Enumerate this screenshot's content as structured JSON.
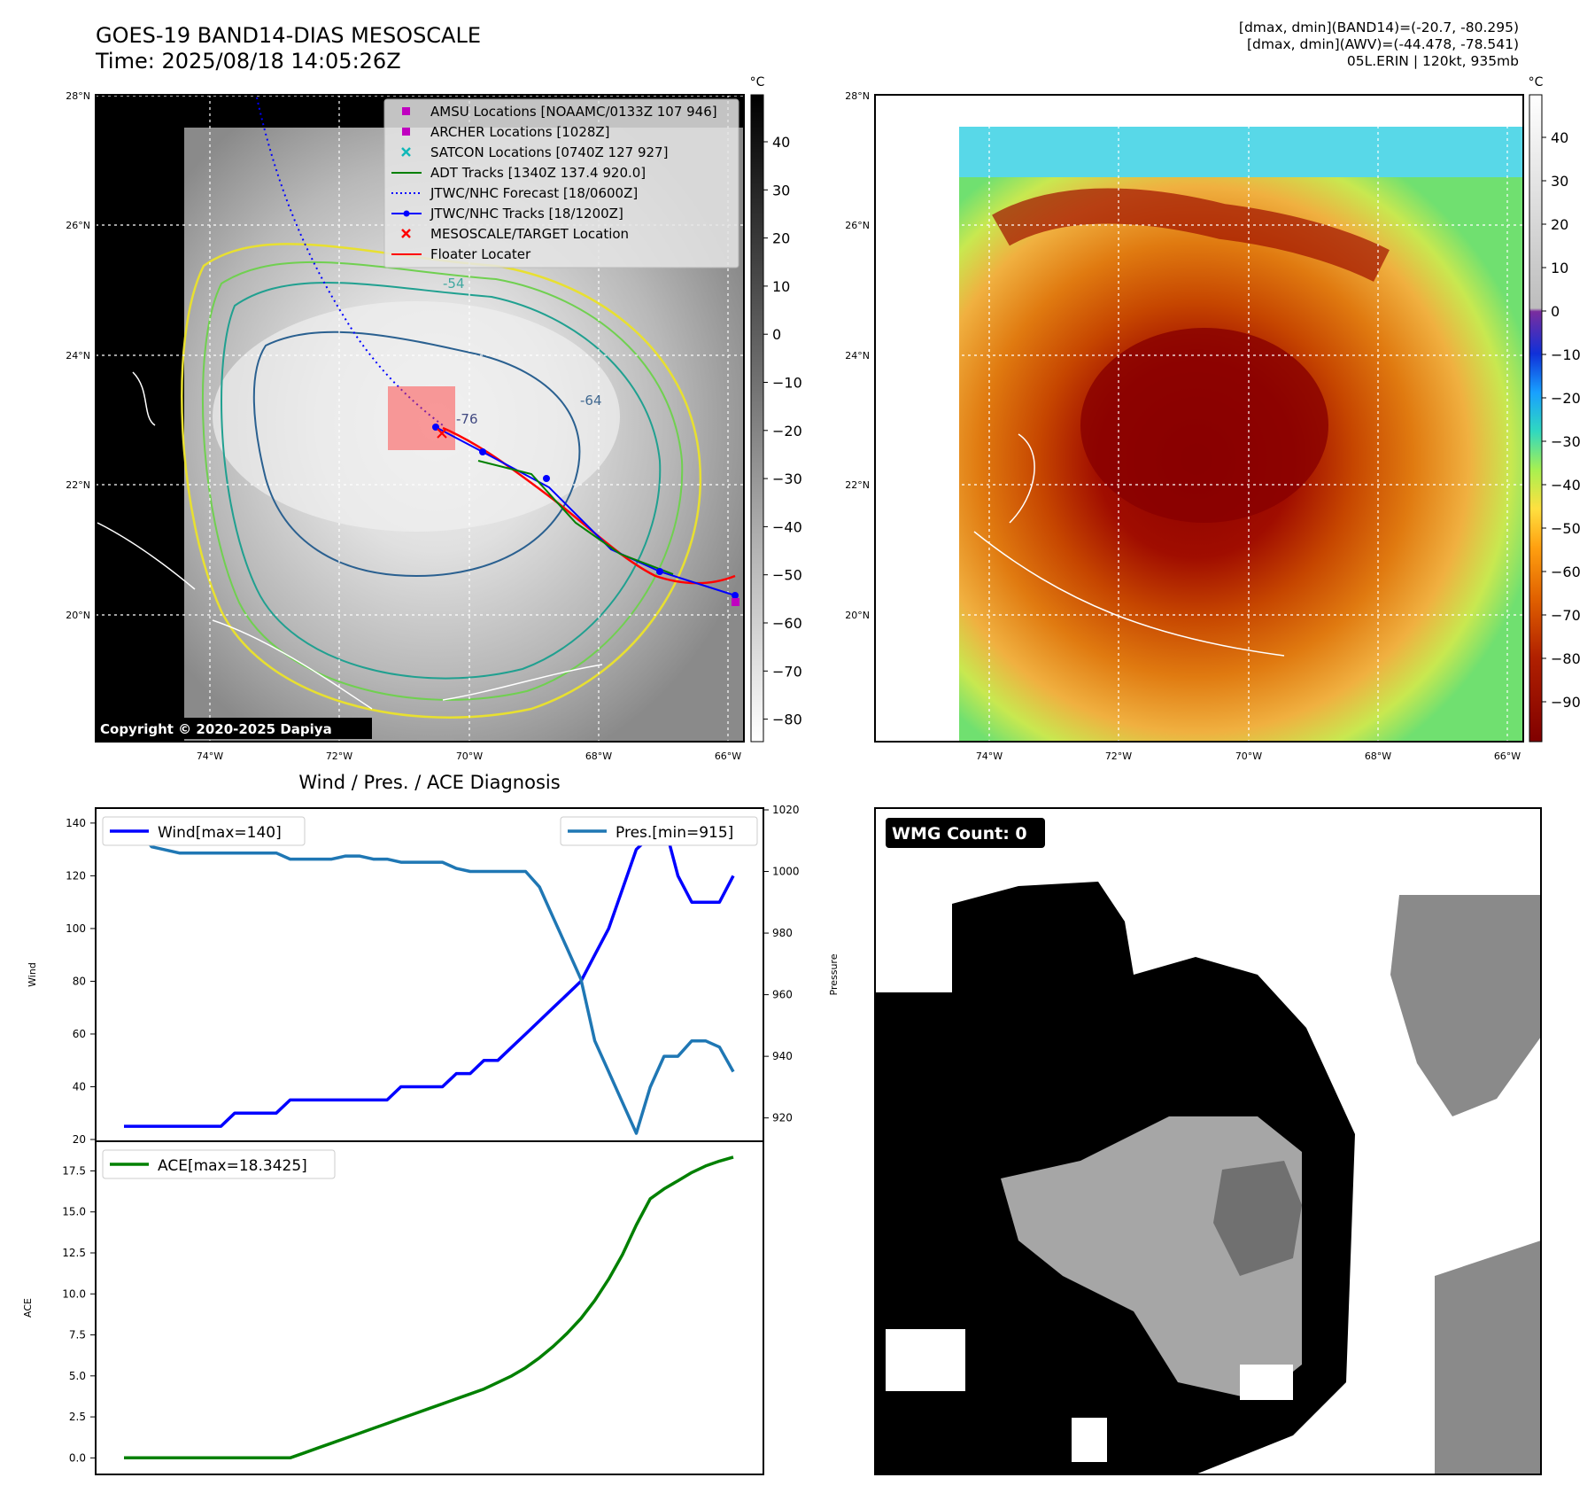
{
  "header": {
    "title_line1": "GOES-19 BAND14-DIAS MESOSCALE",
    "title_line2": "Time: 2025/08/18 14:05:26Z",
    "info_line1": "[dmax, dmin](BAND14)=(-20.7, -80.295)",
    "info_line2": "[dmax, dmin](AWV)=(-44.478, -78.541)",
    "info_line3": "05L.ERIN | 120kt, 935mb"
  },
  "map": {
    "lat_labels": [
      "28°N",
      "26°N",
      "24°N",
      "22°N",
      "20°N"
    ],
    "lon_labels": [
      "74°W",
      "72°W",
      "70°W",
      "68°W",
      "66°W"
    ],
    "contour_labels": [
      "-54",
      "-64",
      "-76"
    ],
    "copyright": "Copyright © 2020-2025 Dapiya",
    "legend": [
      {
        "label": "AMSU Locations [NOAAMC/0133Z 107 946]",
        "color": "#c000c0",
        "marker": "square"
      },
      {
        "label": "ARCHER Locations [1028Z]",
        "color": "#c000c0",
        "marker": "square"
      },
      {
        "label": "SATCON Locations [0740Z 127 927]",
        "color": "#10b8b8",
        "marker": "x"
      },
      {
        "label": "ADT Tracks [1340Z 137.4 920.0]",
        "color": "#008000",
        "marker": "line"
      },
      {
        "label": "JTWC/NHC Forecast [18/0600Z]",
        "color": "#0000ff",
        "marker": "dotted"
      },
      {
        "label": "JTWC/NHC Tracks [18/1200Z]",
        "color": "#0000ff",
        "marker": "line-dot"
      },
      {
        "label": "MESOSCALE/TARGET Location",
        "color": "#ff0000",
        "marker": "x"
      },
      {
        "label": "Floater Locater",
        "color": "#ff0000",
        "marker": "line"
      }
    ]
  },
  "colorbar1": {
    "unit": "°C",
    "ticks": [
      "40",
      "30",
      "20",
      "10",
      "0",
      "−10",
      "−20",
      "−30",
      "−40",
      "−50",
      "−60",
      "−70",
      "−80"
    ]
  },
  "colorbar2": {
    "unit": "°C",
    "ticks": [
      "40",
      "30",
      "20",
      "10",
      "0",
      "−10",
      "−20",
      "−30",
      "−40",
      "−50",
      "−60",
      "−70",
      "−80",
      "−90"
    ]
  },
  "wmg": {
    "label": "WMG Count: 0"
  },
  "chart_data": [
    {
      "type": "line",
      "title": "Wind / Pres. / ACE Diagnosis",
      "ylabel": "Wind",
      "y2label": "Pressure",
      "ylim": [
        20,
        145
      ],
      "y2lim": [
        913,
        1020
      ],
      "yticks": [
        20,
        40,
        60,
        80,
        100,
        120,
        140
      ],
      "y2ticks": [
        920,
        940,
        960,
        980,
        1000,
        1020
      ],
      "legend": [
        "Wind[max=140]",
        "Pres.[min=915]"
      ],
      "series": [
        {
          "name": "Wind[max=140]",
          "axis": "left",
          "color": "#0000ff",
          "values": [
            25,
            25,
            25,
            25,
            25,
            25,
            25,
            25,
            30,
            30,
            30,
            30,
            35,
            35,
            35,
            35,
            35,
            35,
            35,
            35,
            40,
            40,
            40,
            40,
            45,
            45,
            50,
            50,
            55,
            60,
            65,
            70,
            75,
            80,
            90,
            100,
            115,
            130,
            135,
            140,
            120,
            110,
            110,
            110,
            120
          ]
        },
        {
          "name": "Pres.[min=915]",
          "axis": "right",
          "color": "#1f77b4",
          "values": [
            1014,
            1014,
            1008,
            1007,
            1006,
            1006,
            1006,
            1006,
            1006,
            1006,
            1006,
            1006,
            1004,
            1004,
            1004,
            1004,
            1005,
            1005,
            1004,
            1004,
            1003,
            1003,
            1003,
            1003,
            1001,
            1000,
            1000,
            1000,
            1000,
            1000,
            995,
            985,
            975,
            965,
            945,
            935,
            925,
            915,
            930,
            940,
            940,
            945,
            945,
            943,
            935
          ]
        }
      ]
    },
    {
      "type": "line",
      "ylabel": "ACE",
      "ylim": [
        -0.9,
        19.2
      ],
      "yticks": [
        "0.0",
        "2.5",
        "5.0",
        "7.5",
        "10.0",
        "12.5",
        "15.0",
        "17.5"
      ],
      "legend": [
        "ACE[max=18.3425]"
      ],
      "series": [
        {
          "name": "ACE[max=18.3425]",
          "color": "#008000",
          "values": [
            0,
            0,
            0,
            0,
            0,
            0,
            0,
            0,
            0,
            0,
            0,
            0,
            0,
            0.3,
            0.6,
            0.9,
            1.2,
            1.5,
            1.8,
            2.1,
            2.4,
            2.7,
            3.0,
            3.3,
            3.6,
            3.9,
            4.2,
            4.6,
            5.0,
            5.5,
            6.1,
            6.8,
            7.6,
            8.5,
            9.6,
            10.9,
            12.4,
            14.2,
            15.8,
            16.4,
            16.9,
            17.4,
            17.8,
            18.1,
            18.3425
          ]
        }
      ]
    }
  ]
}
